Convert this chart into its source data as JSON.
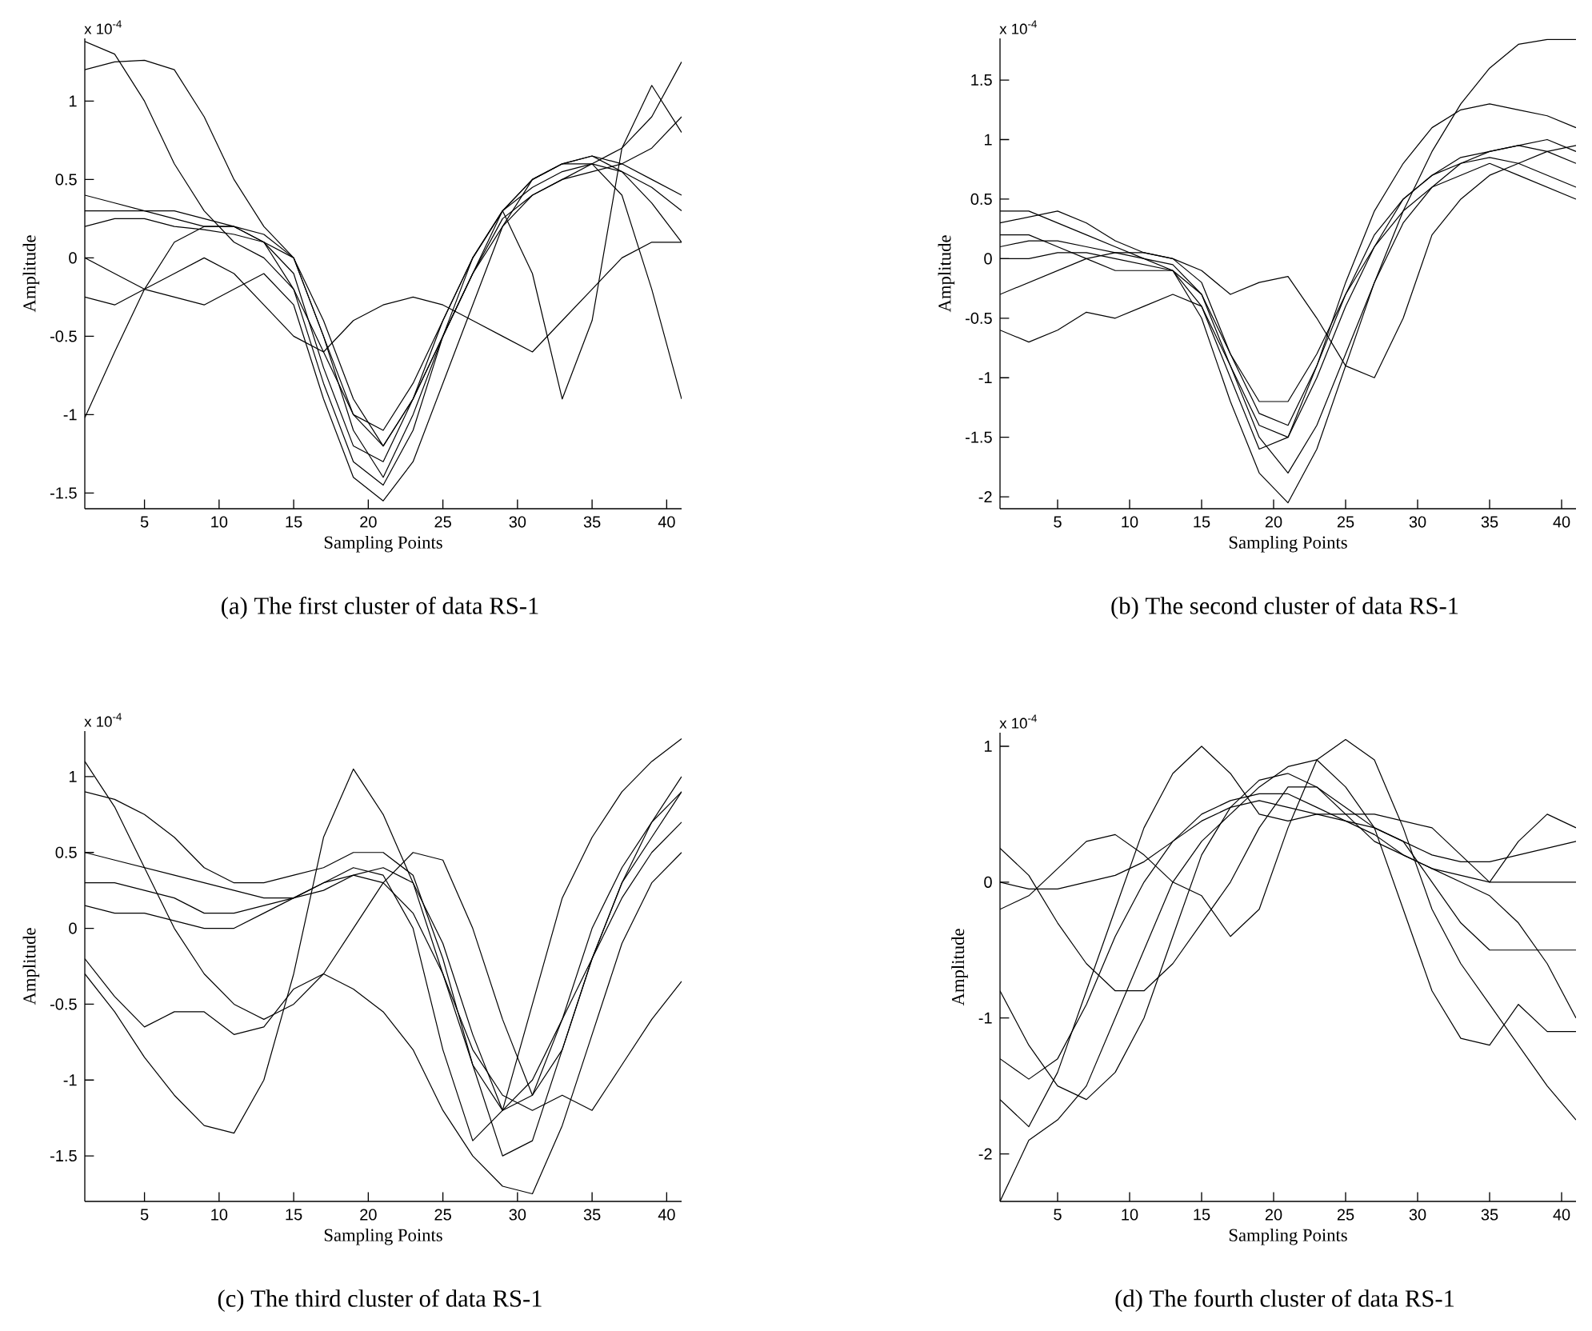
{
  "chart_data": [
    {
      "type": "line",
      "xlabel": "Sampling Points",
      "ylabel": "Amplitude",
      "annotations": [
        "x 10$^{-4}$",
        "(a) The first cluster of data RS-1"
      ],
      "xlim": [
        1,
        41
      ],
      "ylim": [
        -1.6,
        1.4
      ],
      "xticks": [
        5,
        10,
        15,
        20,
        25,
        30,
        35,
        40
      ],
      "yticks": [
        -1.5,
        -1,
        -0.5,
        0,
        0.5,
        1
      ],
      "marker": "none",
      "x": [
        1,
        3,
        5,
        7,
        9,
        11,
        13,
        15,
        17,
        19,
        21,
        23,
        25,
        27,
        29,
        31,
        33,
        35,
        37,
        39,
        41
      ],
      "series": [
        {
          "color": "#000000",
          "values": [
            0.2,
            0.25,
            0.25,
            0.2,
            0.18,
            0.15,
            0.1,
            -0.1,
            -0.7,
            -1.2,
            -1.3,
            -0.9,
            -0.4,
            0.0,
            0.3,
            0.45,
            0.55,
            0.6,
            0.55,
            0.45,
            0.3
          ]
        },
        {
          "color": "#000000",
          "values": [
            0.4,
            0.35,
            0.3,
            0.3,
            0.25,
            0.2,
            0.1,
            0.0,
            -0.5,
            -1.1,
            -1.4,
            -1.0,
            -0.5,
            -0.1,
            0.25,
            0.4,
            0.5,
            0.55,
            0.6,
            0.5,
            0.4
          ]
        },
        {
          "color": "#000000",
          "values": [
            1.38,
            1.3,
            1.0,
            0.6,
            0.3,
            0.1,
            0.0,
            -0.2,
            -0.6,
            -1.0,
            -1.1,
            -0.8,
            -0.4,
            0.0,
            0.3,
            0.5,
            0.6,
            0.65,
            0.6,
            0.7,
            0.9
          ]
        },
        {
          "color": "#000000",
          "values": [
            1.2,
            1.25,
            1.26,
            1.2,
            0.9,
            0.5,
            0.2,
            0.0,
            -0.4,
            -0.9,
            -1.2,
            -0.9,
            -0.5,
            -0.1,
            0.2,
            0.4,
            0.5,
            0.6,
            0.7,
            0.9,
            1.25
          ]
        },
        {
          "color": "#000000",
          "values": [
            -1.02,
            -0.6,
            -0.2,
            0.1,
            0.2,
            0.2,
            0.1,
            -0.2,
            -0.8,
            -1.3,
            -1.45,
            -1.1,
            -0.5,
            0.0,
            0.3,
            0.5,
            0.6,
            0.65,
            0.55,
            0.35,
            0.1
          ]
        },
        {
          "color": "#000000",
          "values": [
            0.3,
            0.3,
            0.3,
            0.25,
            0.2,
            0.2,
            0.15,
            0.0,
            -0.5,
            -1.0,
            -1.2,
            -0.9,
            -0.5,
            -0.1,
            0.3,
            -0.1,
            -0.9,
            -0.4,
            0.7,
            1.1,
            0.8
          ]
        },
        {
          "color": "#000000",
          "values": [
            0.0,
            -0.1,
            -0.2,
            -0.25,
            -0.3,
            -0.2,
            -0.1,
            -0.3,
            -0.9,
            -1.4,
            -1.55,
            -1.3,
            -0.8,
            -0.3,
            0.2,
            0.5,
            0.6,
            0.6,
            0.4,
            -0.2,
            -0.9
          ]
        },
        {
          "color": "#000000",
          "values": [
            -0.25,
            -0.3,
            -0.2,
            -0.1,
            0.0,
            -0.1,
            -0.3,
            -0.5,
            -0.6,
            -0.4,
            -0.3,
            -0.25,
            -0.3,
            -0.4,
            -0.5,
            -0.6,
            -0.4,
            -0.2,
            0.0,
            0.1,
            0.1
          ]
        }
      ]
    },
    {
      "type": "line",
      "xlabel": "Sampling Points",
      "ylabel": "Amplitude",
      "annotations": [
        "x 10$^{-4}$",
        "(b) The second cluster of data RS-1"
      ],
      "xlim": [
        1,
        41
      ],
      "ylim": [
        -2.1,
        1.85
      ],
      "xticks": [
        5,
        10,
        15,
        20,
        25,
        30,
        35,
        40
      ],
      "yticks": [
        -2,
        -1.5,
        -1,
        -0.5,
        0,
        0.5,
        1,
        1.5
      ],
      "marker": "none",
      "x": [
        1,
        3,
        5,
        7,
        9,
        11,
        13,
        15,
        17,
        19,
        21,
        23,
        25,
        27,
        29,
        31,
        33,
        35,
        37,
        39,
        41
      ],
      "series": [
        {
          "color": "#000000",
          "values": [
            0.1,
            0.15,
            0.15,
            0.1,
            0.05,
            0.0,
            -0.05,
            -0.3,
            -0.9,
            -1.4,
            -1.5,
            -1.0,
            -0.4,
            0.1,
            0.5,
            0.7,
            0.8,
            0.9,
            0.95,
            1.0,
            0.9
          ]
        },
        {
          "color": "#000000",
          "values": [
            0.3,
            0.35,
            0.4,
            0.3,
            0.15,
            0.05,
            0.0,
            -0.2,
            -0.8,
            -1.3,
            -1.4,
            -0.9,
            -0.3,
            0.2,
            0.5,
            0.7,
            0.85,
            0.9,
            0.95,
            0.9,
            0.8
          ]
        },
        {
          "color": "#000000",
          "values": [
            -0.6,
            -0.7,
            -0.6,
            -0.45,
            -0.5,
            -0.4,
            -0.3,
            -0.4,
            -0.9,
            -1.5,
            -1.8,
            -1.4,
            -0.8,
            -0.2,
            0.3,
            0.6,
            0.8,
            0.85,
            0.8,
            0.7,
            0.6
          ]
        },
        {
          "color": "#000000",
          "values": [
            0.0,
            0.0,
            0.05,
            0.05,
            0.0,
            -0.05,
            -0.1,
            -0.5,
            -1.2,
            -1.8,
            -2.05,
            -1.6,
            -0.9,
            -0.2,
            0.4,
            0.9,
            1.3,
            1.6,
            1.8,
            1.84,
            1.84
          ]
        },
        {
          "color": "#000000",
          "values": [
            -0.3,
            -0.2,
            -0.1,
            0.0,
            0.05,
            0.05,
            0.0,
            -0.1,
            -0.3,
            -0.2,
            -0.15,
            -0.5,
            -0.9,
            -1.0,
            -0.5,
            0.2,
            0.5,
            0.7,
            0.8,
            0.9,
            0.95
          ]
        },
        {
          "color": "#000000",
          "values": [
            0.2,
            0.2,
            0.1,
            0.0,
            -0.1,
            -0.1,
            -0.1,
            -0.4,
            -1.0,
            -1.6,
            -1.5,
            -0.9,
            -0.2,
            0.4,
            0.8,
            1.1,
            1.25,
            1.3,
            1.25,
            1.2,
            1.1
          ]
        },
        {
          "color": "#000000",
          "values": [
            0.4,
            0.4,
            0.3,
            0.2,
            0.1,
            0.0,
            -0.1,
            -0.3,
            -0.8,
            -1.2,
            -1.2,
            -0.8,
            -0.3,
            0.1,
            0.4,
            0.6,
            0.7,
            0.8,
            0.7,
            0.6,
            0.5
          ]
        }
      ]
    },
    {
      "type": "line",
      "xlabel": "Sampling Points",
      "ylabel": "Amplitude",
      "annotations": [
        "x 10$^{-4}$",
        "(c) The third cluster of data RS-1"
      ],
      "xlim": [
        1,
        41
      ],
      "ylim": [
        -1.8,
        1.3
      ],
      "xticks": [
        5,
        10,
        15,
        20,
        25,
        30,
        35,
        40
      ],
      "yticks": [
        -1.5,
        -1,
        -0.5,
        0,
        0.5,
        1
      ],
      "marker": "none",
      "x": [
        1,
        3,
        5,
        7,
        9,
        11,
        13,
        15,
        17,
        19,
        21,
        23,
        25,
        27,
        29,
        31,
        33,
        35,
        37,
        39,
        41
      ],
      "series": [
        {
          "color": "#000000",
          "values": [
            0.3,
            0.3,
            0.25,
            0.2,
            0.1,
            0.1,
            0.15,
            0.2,
            0.3,
            0.4,
            0.35,
            0.0,
            -0.8,
            -1.4,
            -1.2,
            -0.5,
            0.2,
            0.6,
            0.9,
            1.1,
            1.25
          ]
        },
        {
          "color": "#000000",
          "values": [
            0.15,
            0.1,
            0.1,
            0.05,
            0.0,
            0.0,
            0.1,
            0.2,
            0.3,
            0.35,
            0.4,
            0.3,
            -0.1,
            -0.7,
            -1.2,
            -1.1,
            -0.6,
            0.0,
            0.4,
            0.7,
            0.9
          ]
        },
        {
          "color": "#000000",
          "values": [
            0.9,
            0.85,
            0.75,
            0.6,
            0.4,
            0.3,
            0.3,
            0.35,
            0.4,
            0.5,
            0.5,
            0.35,
            -0.2,
            -0.9,
            -1.5,
            -1.4,
            -0.8,
            -0.2,
            0.3,
            0.7,
            1.0
          ]
        },
        {
          "color": "#000000",
          "values": [
            -0.3,
            -0.55,
            -0.85,
            -1.1,
            -1.3,
            -1.35,
            -1.0,
            -0.3,
            0.6,
            1.05,
            0.75,
            0.3,
            -0.3,
            -0.9,
            -1.2,
            -1.0,
            -0.6,
            -0.2,
            0.2,
            0.5,
            0.7
          ]
        },
        {
          "color": "#000000",
          "values": [
            0.5,
            0.45,
            0.4,
            0.35,
            0.3,
            0.25,
            0.2,
            0.2,
            0.25,
            0.35,
            0.3,
            0.1,
            -0.3,
            -0.8,
            -1.1,
            -1.2,
            -1.1,
            -1.2,
            -0.9,
            -0.6,
            -0.35
          ]
        },
        {
          "color": "#000000",
          "values": [
            1.1,
            0.8,
            0.4,
            0.0,
            -0.3,
            -0.5,
            -0.6,
            -0.5,
            -0.3,
            0.0,
            0.3,
            0.5,
            0.45,
            0.0,
            -0.6,
            -1.1,
            -0.8,
            -0.2,
            0.3,
            0.6,
            0.9
          ]
        },
        {
          "color": "#000000",
          "values": [
            -0.2,
            -0.45,
            -0.65,
            -0.55,
            -0.55,
            -0.7,
            -0.65,
            -0.4,
            -0.3,
            -0.4,
            -0.55,
            -0.8,
            -1.2,
            -1.5,
            -1.7,
            -1.75,
            -1.3,
            -0.7,
            -0.1,
            0.3,
            0.5
          ]
        }
      ]
    },
    {
      "type": "line",
      "xlabel": "Sampling Points",
      "ylabel": "Amplitude",
      "annotations": [
        "x 10$^{-4}$",
        "(d) The fourth cluster of data RS-1"
      ],
      "xlim": [
        1,
        41
      ],
      "ylim": [
        -2.35,
        1.1
      ],
      "xticks": [
        5,
        10,
        15,
        20,
        25,
        30,
        35,
        40
      ],
      "yticks": [
        -2,
        -1,
        0,
        1
      ],
      "marker": "none",
      "x": [
        1,
        3,
        5,
        7,
        9,
        11,
        13,
        15,
        17,
        19,
        21,
        23,
        25,
        27,
        29,
        31,
        33,
        35,
        37,
        39,
        41
      ],
      "series": [
        {
          "color": "#000000",
          "values": [
            -1.3,
            -1.45,
            -1.3,
            -0.9,
            -0.4,
            0.0,
            0.3,
            0.5,
            0.6,
            0.65,
            0.65,
            0.55,
            0.45,
            0.35,
            0.2,
            0.1,
            0.05,
            0.0,
            0.0,
            0.0,
            0.0
          ]
        },
        {
          "color": "#000000",
          "values": [
            0.0,
            -0.05,
            -0.05,
            0.0,
            0.05,
            0.15,
            0.3,
            0.45,
            0.55,
            0.6,
            0.55,
            0.5,
            0.45,
            0.4,
            0.3,
            0.2,
            0.15,
            0.15,
            0.2,
            0.25,
            0.3
          ]
        },
        {
          "color": "#000000",
          "values": [
            -2.35,
            -1.9,
            -1.75,
            -1.5,
            -1.0,
            -0.5,
            0.0,
            0.3,
            0.5,
            0.7,
            0.85,
            0.9,
            0.7,
            0.4,
            -0.2,
            -0.8,
            -1.15,
            -1.2,
            -0.9,
            -1.1,
            -1.1
          ]
        },
        {
          "color": "#000000",
          "values": [
            0.25,
            0.05,
            -0.3,
            -0.6,
            -0.8,
            -0.8,
            -0.6,
            -0.3,
            0.0,
            0.4,
            0.7,
            0.7,
            0.5,
            0.3,
            0.2,
            0.1,
            0.0,
            -0.1,
            -0.3,
            -0.6,
            -1.0
          ]
        },
        {
          "color": "#000000",
          "values": [
            -0.2,
            -0.1,
            0.1,
            0.3,
            0.35,
            0.2,
            0.0,
            -0.1,
            -0.4,
            -0.2,
            0.4,
            0.9,
            1.05,
            0.9,
            0.4,
            -0.2,
            -0.6,
            -0.9,
            -1.2,
            -1.5,
            -1.75
          ]
        },
        {
          "color": "#000000",
          "values": [
            -0.8,
            -1.2,
            -1.5,
            -1.6,
            -1.4,
            -1.0,
            -0.4,
            0.2,
            0.55,
            0.75,
            0.8,
            0.7,
            0.55,
            0.4,
            0.3,
            0.0,
            -0.3,
            -0.5,
            -0.5,
            -0.5,
            -0.5
          ]
        },
        {
          "color": "#000000",
          "values": [
            -1.6,
            -1.8,
            -1.4,
            -0.8,
            -0.2,
            0.4,
            0.8,
            1.0,
            0.8,
            0.5,
            0.45,
            0.5,
            0.5,
            0.5,
            0.45,
            0.4,
            0.2,
            0.0,
            0.3,
            0.5,
            0.4
          ]
        }
      ]
    }
  ]
}
